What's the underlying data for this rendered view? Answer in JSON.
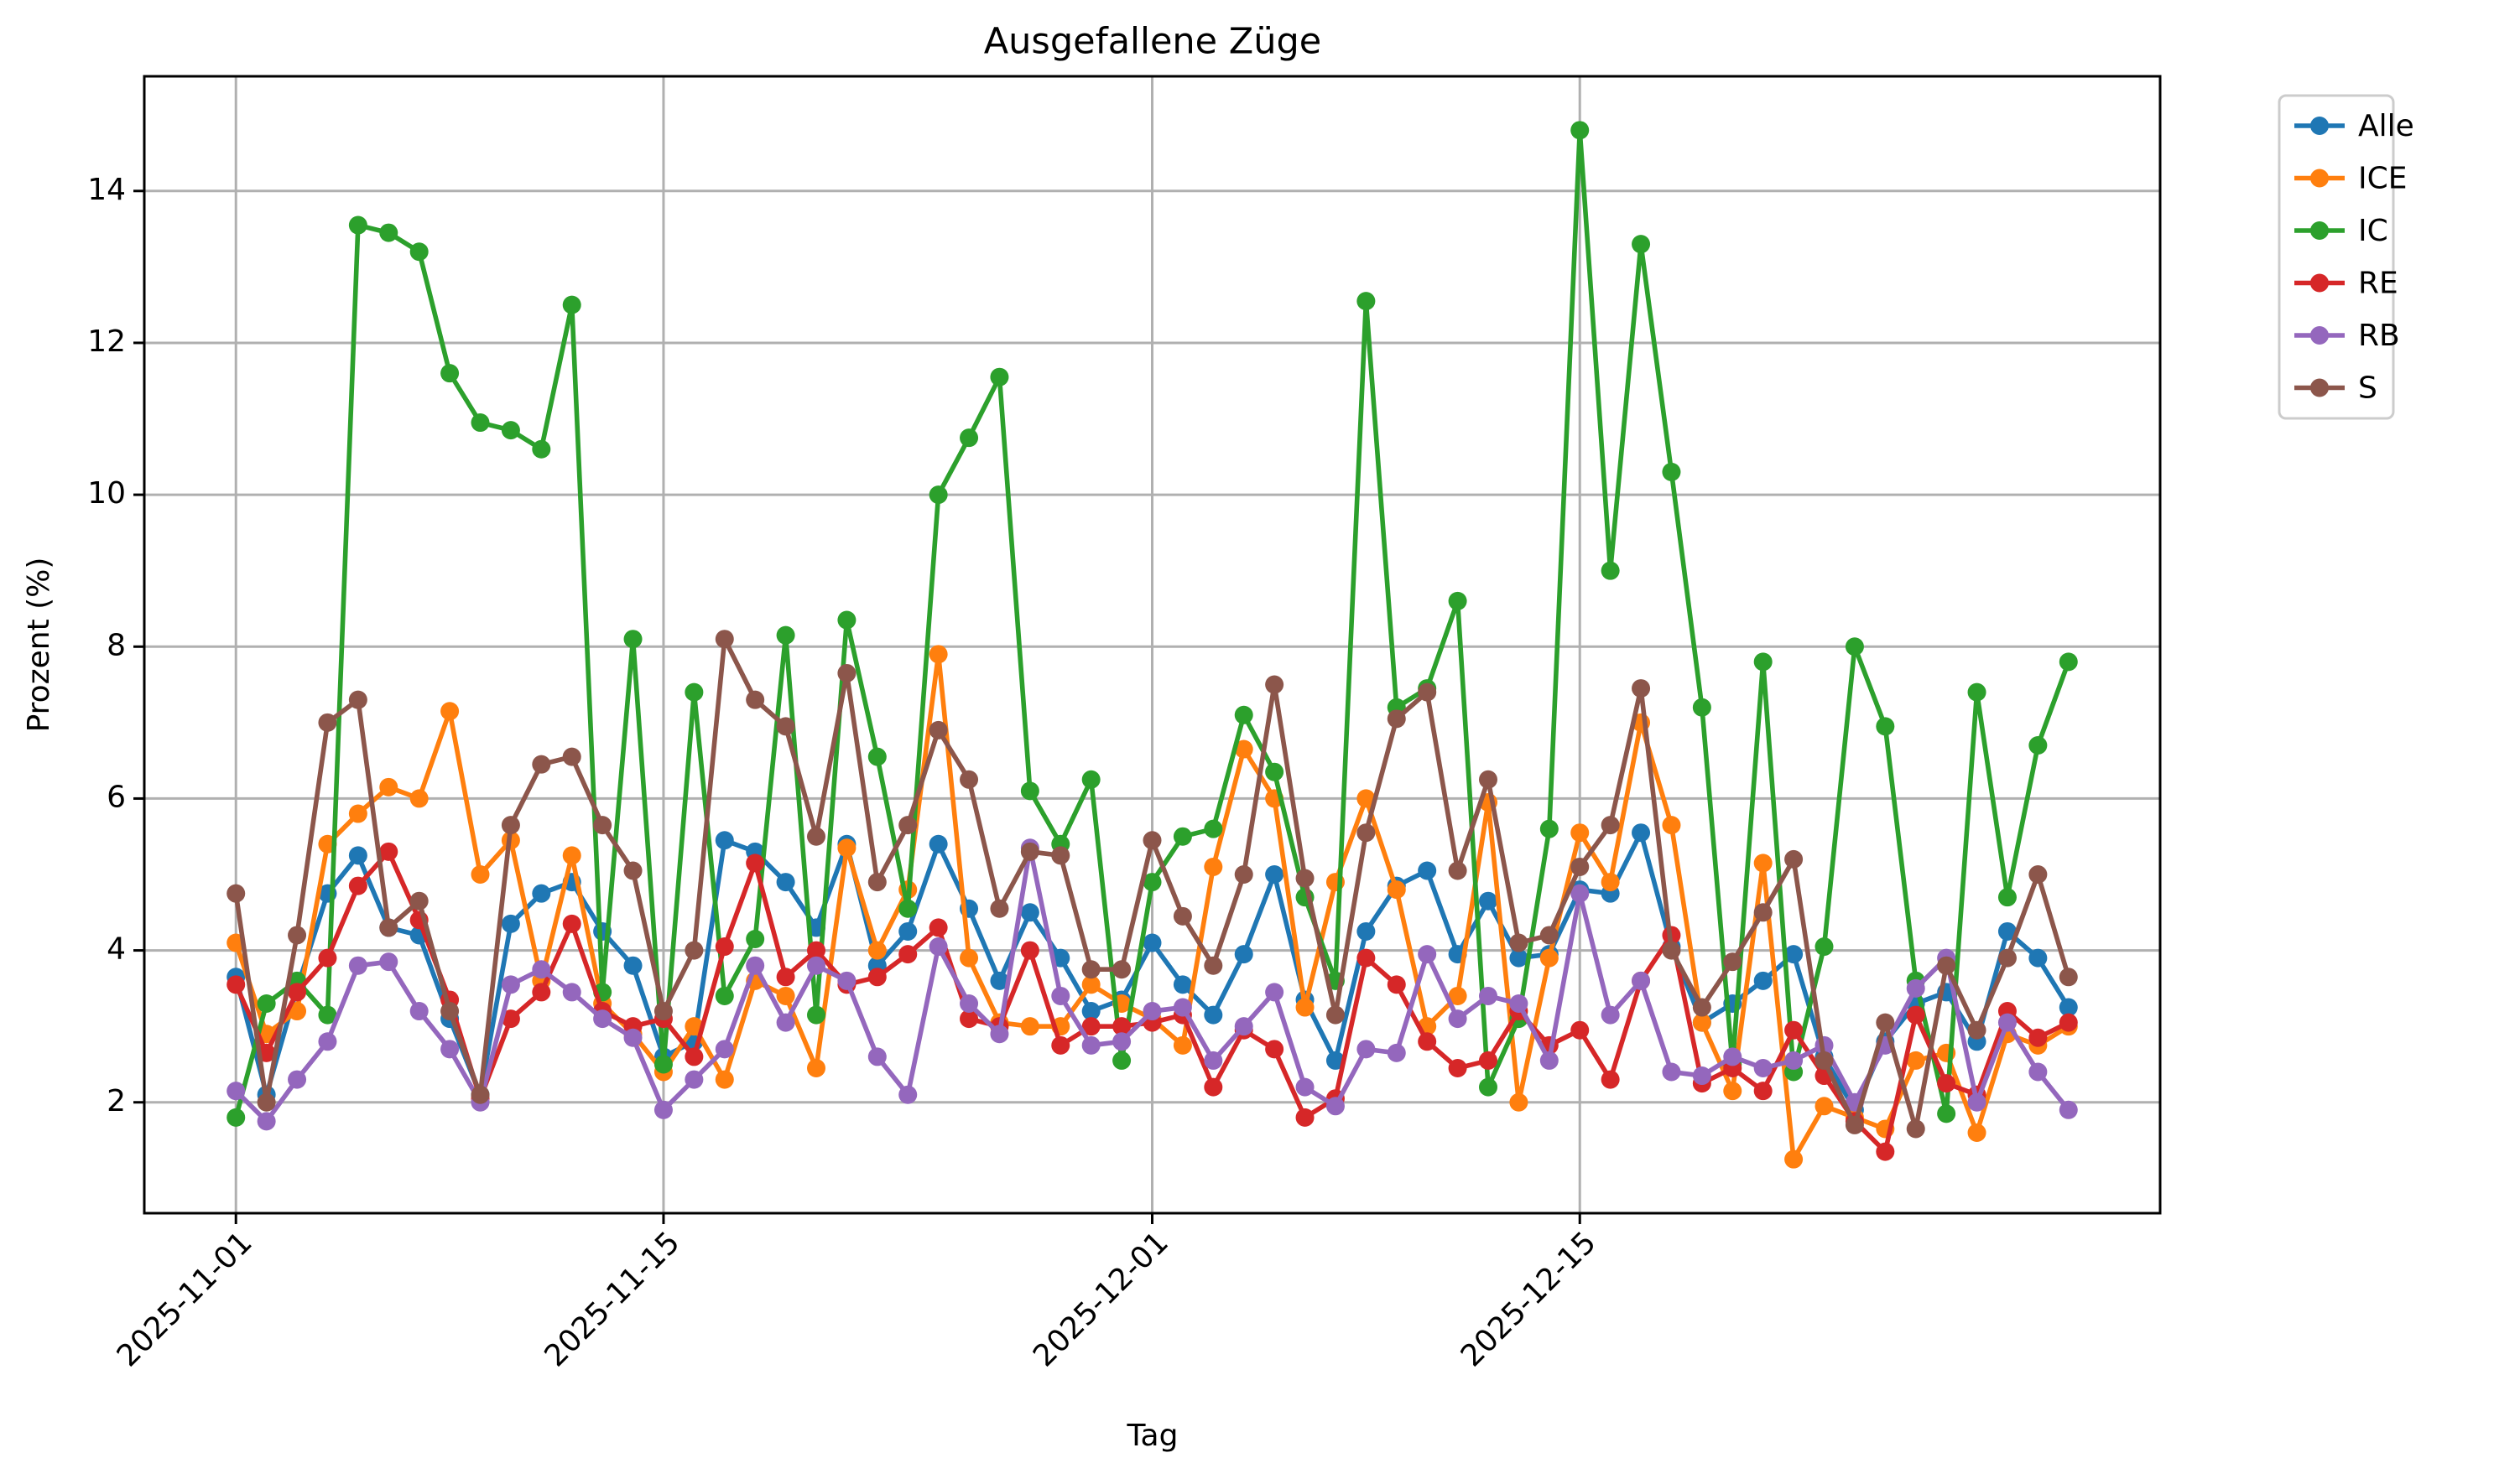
{
  "chart_data": {
    "type": "line",
    "title": "Ausgefallene Züge",
    "x_label": "Tag",
    "y_label": "Prozent (%)",
    "x": [
      "2025-11-01",
      "2025-11-02",
      "2025-11-03",
      "2025-11-04",
      "2025-11-05",
      "2025-11-06",
      "2025-11-07",
      "2025-11-08",
      "2025-11-09",
      "2025-11-10",
      "2025-11-11",
      "2025-11-12",
      "2025-11-13",
      "2025-11-14",
      "2025-11-15",
      "2025-11-16",
      "2025-11-17",
      "2025-11-18",
      "2025-11-19",
      "2025-11-20",
      "2025-11-21",
      "2025-11-22",
      "2025-11-23",
      "2025-11-24",
      "2025-11-25",
      "2025-11-26",
      "2025-11-27",
      "2025-11-28",
      "2025-11-29",
      "2025-11-30",
      "2025-12-01",
      "2025-12-02",
      "2025-12-03",
      "2025-12-04",
      "2025-12-05",
      "2025-12-06",
      "2025-12-07",
      "2025-12-08",
      "2025-12-09",
      "2025-12-10",
      "2025-12-11",
      "2025-12-12",
      "2025-12-13",
      "2025-12-14",
      "2025-12-15",
      "2025-12-16",
      "2025-12-17",
      "2025-12-18",
      "2025-12-19",
      "2025-12-20",
      "2025-12-21",
      "2025-12-22",
      "2025-12-23",
      "2025-12-24",
      "2025-12-25",
      "2025-12-26",
      "2025-12-27",
      "2025-12-28",
      "2025-12-29",
      "2025-12-30",
      "2025-12-31"
    ],
    "series": [
      {
        "name": "Alle",
        "color": "#1f77b4",
        "values": [
          3.65,
          2.1,
          3.5,
          4.75,
          5.25,
          4.3,
          4.2,
          3.1,
          2.1,
          4.35,
          4.75,
          4.9,
          4.25,
          3.8,
          2.6,
          2.8,
          5.45,
          5.3,
          4.9,
          4.3,
          5.4,
          3.8,
          4.25,
          5.4,
          4.55,
          3.6,
          4.5,
          3.9,
          3.2,
          3.35,
          4.1,
          3.55,
          3.15,
          3.95,
          5.0,
          3.35,
          2.55,
          4.25,
          4.85,
          5.05,
          3.95,
          4.65,
          3.9,
          3.95,
          4.8,
          4.75,
          5.55,
          4.05,
          3.05,
          3.3,
          3.6,
          3.95,
          2.6,
          1.9,
          2.8,
          3.3,
          3.45,
          2.8,
          4.25,
          3.9,
          3.25
        ]
      },
      {
        "name": "ICE",
        "color": "#ff7f0e",
        "values": [
          4.1,
          2.9,
          3.2,
          5.4,
          5.8,
          6.15,
          6.0,
          7.15,
          5.0,
          5.45,
          3.6,
          5.25,
          3.3,
          2.9,
          2.4,
          3.0,
          2.3,
          3.6,
          3.4,
          2.45,
          5.35,
          4.0,
          4.8,
          7.9,
          3.9,
          3.05,
          3.0,
          3.0,
          3.55,
          3.3,
          3.1,
          2.75,
          5.1,
          6.65,
          6.0,
          3.25,
          4.9,
          6.0,
          4.8,
          3.0,
          3.4,
          5.95,
          2.0,
          3.9,
          5.55,
          4.9,
          7.0,
          5.65,
          3.05,
          2.15,
          5.15,
          1.25,
          1.95,
          1.8,
          1.65,
          2.55,
          2.65,
          1.6,
          2.9,
          2.75,
          3.0
        ]
      },
      {
        "name": "IC",
        "color": "#2ca02c",
        "values": [
          1.8,
          3.3,
          3.6,
          3.15,
          13.55,
          13.45,
          13.2,
          11.6,
          10.95,
          10.85,
          10.6,
          12.5,
          3.45,
          8.1,
          2.5,
          7.4,
          3.4,
          4.15,
          8.15,
          3.15,
          8.35,
          6.55,
          4.55,
          10.0,
          10.75,
          11.55,
          6.1,
          5.4,
          6.25,
          2.55,
          4.9,
          5.5,
          5.6,
          7.1,
          6.35,
          4.7,
          3.6,
          12.55,
          7.2,
          7.45,
          8.6,
          2.2,
          3.1,
          5.6,
          14.8,
          9.0,
          13.3,
          10.3,
          7.2,
          2.5,
          7.8,
          2.4,
          4.05,
          8.0,
          6.95,
          3.6,
          1.85,
          7.4,
          4.7,
          6.7,
          7.8
        ]
      },
      {
        "name": "RE",
        "color": "#d62728",
        "values": [
          3.55,
          2.65,
          3.45,
          3.9,
          4.85,
          5.3,
          4.4,
          3.35,
          2.05,
          3.1,
          3.45,
          4.35,
          3.2,
          3.0,
          3.1,
          2.6,
          4.05,
          5.15,
          3.65,
          4.0,
          3.55,
          3.65,
          3.95,
          4.3,
          3.1,
          3.0,
          4.0,
          2.75,
          3.0,
          3.0,
          3.05,
          3.15,
          2.2,
          2.95,
          2.7,
          1.8,
          2.05,
          3.9,
          3.55,
          2.8,
          2.45,
          2.55,
          3.2,
          2.75,
          2.95,
          2.3,
          3.6,
          4.2,
          2.25,
          2.45,
          2.15,
          2.95,
          2.35,
          1.75,
          1.35,
          3.15,
          2.25,
          2.1,
          3.2,
          2.85,
          3.05
        ]
      },
      {
        "name": "RB",
        "color": "#9467bd",
        "values": [
          2.15,
          1.75,
          2.3,
          2.8,
          3.8,
          3.85,
          3.2,
          2.7,
          2.0,
          3.55,
          3.75,
          3.45,
          3.1,
          2.85,
          1.9,
          2.3,
          2.7,
          3.8,
          3.05,
          3.8,
          3.6,
          2.6,
          2.1,
          4.05,
          3.3,
          2.9,
          5.35,
          3.4,
          2.75,
          2.8,
          3.2,
          3.25,
          2.55,
          3.0,
          3.45,
          2.2,
          1.95,
          2.7,
          2.65,
          3.95,
          3.1,
          3.4,
          3.3,
          2.55,
          4.75,
          3.15,
          3.6,
          2.4,
          2.35,
          2.6,
          2.45,
          2.55,
          2.75,
          2.0,
          2.75,
          3.5,
          3.9,
          2.0,
          3.05,
          2.4,
          1.9
        ]
      },
      {
        "name": "S",
        "color": "#8c564b",
        "values": [
          4.75,
          2.0,
          4.2,
          7.0,
          7.3,
          4.3,
          4.65,
          3.2,
          2.1,
          5.65,
          6.45,
          6.55,
          5.65,
          5.05,
          3.2,
          4.0,
          8.1,
          7.3,
          6.95,
          5.5,
          7.65,
          4.9,
          5.65,
          6.9,
          6.25,
          4.55,
          5.3,
          5.25,
          3.75,
          3.75,
          5.45,
          4.45,
          3.8,
          5.0,
          7.5,
          4.95,
          3.15,
          5.55,
          7.05,
          7.4,
          5.05,
          6.25,
          4.1,
          4.2,
          5.1,
          5.65,
          7.45,
          4.0,
          3.25,
          3.85,
          4.5,
          5.2,
          2.55,
          1.7,
          3.05,
          1.65,
          3.8,
          2.95,
          3.9,
          5.0,
          3.65
        ]
      }
    ],
    "xlim": [
      "2025-10-29",
      "2026-01-03"
    ],
    "xticks": [
      "2025-11-01",
      "2025-11-15",
      "2025-12-01",
      "2025-12-15"
    ],
    "ylim": [
      0.54,
      15.51
    ],
    "yticks": [
      2,
      4,
      6,
      8,
      10,
      12,
      14
    ],
    "grid": true,
    "legend": "outside right"
  }
}
